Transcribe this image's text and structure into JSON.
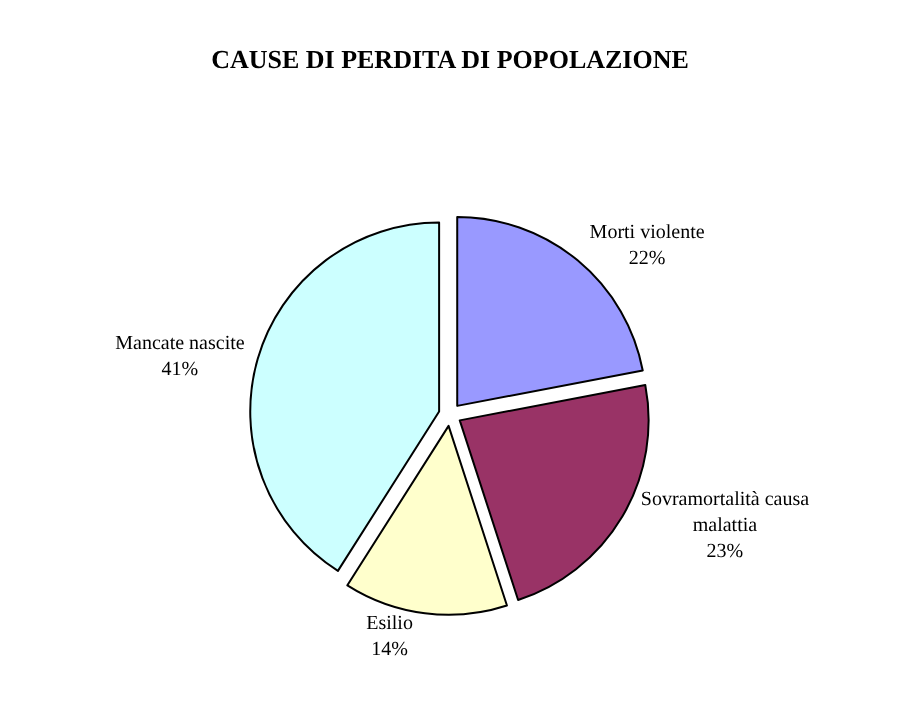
{
  "chart_data": {
    "type": "pie",
    "title": "CAUSE DI PERDITA DI POPOLAZIONE",
    "categories": [
      "Morti violente",
      "Sovramortalità causa malattia",
      "Esilio",
      "Mancate nascite"
    ],
    "values": [
      22,
      23,
      14,
      41
    ],
    "value_labels": [
      "22%",
      "23%",
      "14%",
      "41%"
    ],
    "colors": [
      "#9999ff",
      "#993366",
      "#ffffcc",
      "#ccffff"
    ],
    "legend": false
  }
}
